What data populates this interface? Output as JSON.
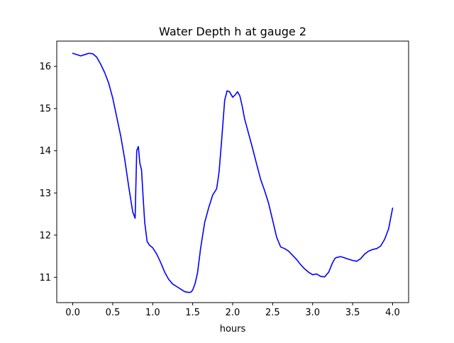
{
  "chart_data": {
    "type": "line",
    "title": "Water Depth h at gauge 2",
    "xlabel": "hours",
    "ylabel": "",
    "xlim": [
      -0.2,
      4.2
    ],
    "ylim": [
      10.4,
      16.6
    ],
    "xticks": [
      0.0,
      0.5,
      1.0,
      1.5,
      2.0,
      2.5,
      3.0,
      3.5,
      4.0
    ],
    "xtick_labels": [
      "0.0",
      "0.5",
      "1.0",
      "1.5",
      "2.0",
      "2.5",
      "3.0",
      "3.5",
      "4.0"
    ],
    "yticks": [
      11,
      12,
      13,
      14,
      15,
      16
    ],
    "ytick_labels": [
      "11",
      "12",
      "13",
      "14",
      "15",
      "16"
    ],
    "grid": false,
    "series": [
      {
        "color": "#0000ff",
        "x": [
          0.0,
          0.05,
          0.1,
          0.15,
          0.2,
          0.25,
          0.3,
          0.35,
          0.4,
          0.45,
          0.5,
          0.55,
          0.6,
          0.65,
          0.7,
          0.75,
          0.78,
          0.8,
          0.82,
          0.84,
          0.86,
          0.88,
          0.9,
          0.93,
          0.96,
          1.0,
          1.05,
          1.1,
          1.15,
          1.2,
          1.25,
          1.3,
          1.35,
          1.4,
          1.45,
          1.48,
          1.5,
          1.53,
          1.56,
          1.6,
          1.65,
          1.7,
          1.75,
          1.8,
          1.83,
          1.86,
          1.9,
          1.93,
          1.96,
          2.0,
          2.03,
          2.06,
          2.09,
          2.12,
          2.15,
          2.2,
          2.25,
          2.3,
          2.35,
          2.4,
          2.45,
          2.5,
          2.55,
          2.6,
          2.65,
          2.7,
          2.75,
          2.8,
          2.85,
          2.9,
          2.95,
          3.0,
          3.05,
          3.1,
          3.15,
          3.2,
          3.25,
          3.28,
          3.3,
          3.35,
          3.4,
          3.45,
          3.5,
          3.55,
          3.6,
          3.65,
          3.7,
          3.75,
          3.8,
          3.85,
          3.9,
          3.95,
          4.0
        ],
        "y": [
          16.31,
          16.28,
          16.25,
          16.28,
          16.31,
          16.3,
          16.22,
          16.05,
          15.85,
          15.6,
          15.25,
          14.8,
          14.35,
          13.8,
          13.15,
          12.55,
          12.4,
          14.0,
          14.1,
          13.7,
          13.55,
          12.9,
          12.3,
          11.85,
          11.76,
          11.7,
          11.55,
          11.35,
          11.12,
          10.95,
          10.84,
          10.78,
          10.72,
          10.66,
          10.64,
          10.65,
          10.7,
          10.85,
          11.1,
          11.7,
          12.3,
          12.65,
          12.95,
          13.1,
          13.5,
          14.2,
          15.2,
          15.42,
          15.4,
          15.27,
          15.32,
          15.4,
          15.3,
          15.05,
          14.75,
          14.4,
          14.05,
          13.68,
          13.32,
          13.05,
          12.75,
          12.35,
          11.95,
          11.72,
          11.68,
          11.62,
          11.52,
          11.42,
          11.3,
          11.2,
          11.12,
          11.06,
          11.08,
          11.02,
          11.01,
          11.12,
          11.35,
          11.45,
          11.47,
          11.49,
          11.46,
          11.43,
          11.4,
          11.38,
          11.44,
          11.55,
          11.62,
          11.66,
          11.68,
          11.74,
          11.9,
          12.15,
          12.64
        ]
      }
    ]
  }
}
